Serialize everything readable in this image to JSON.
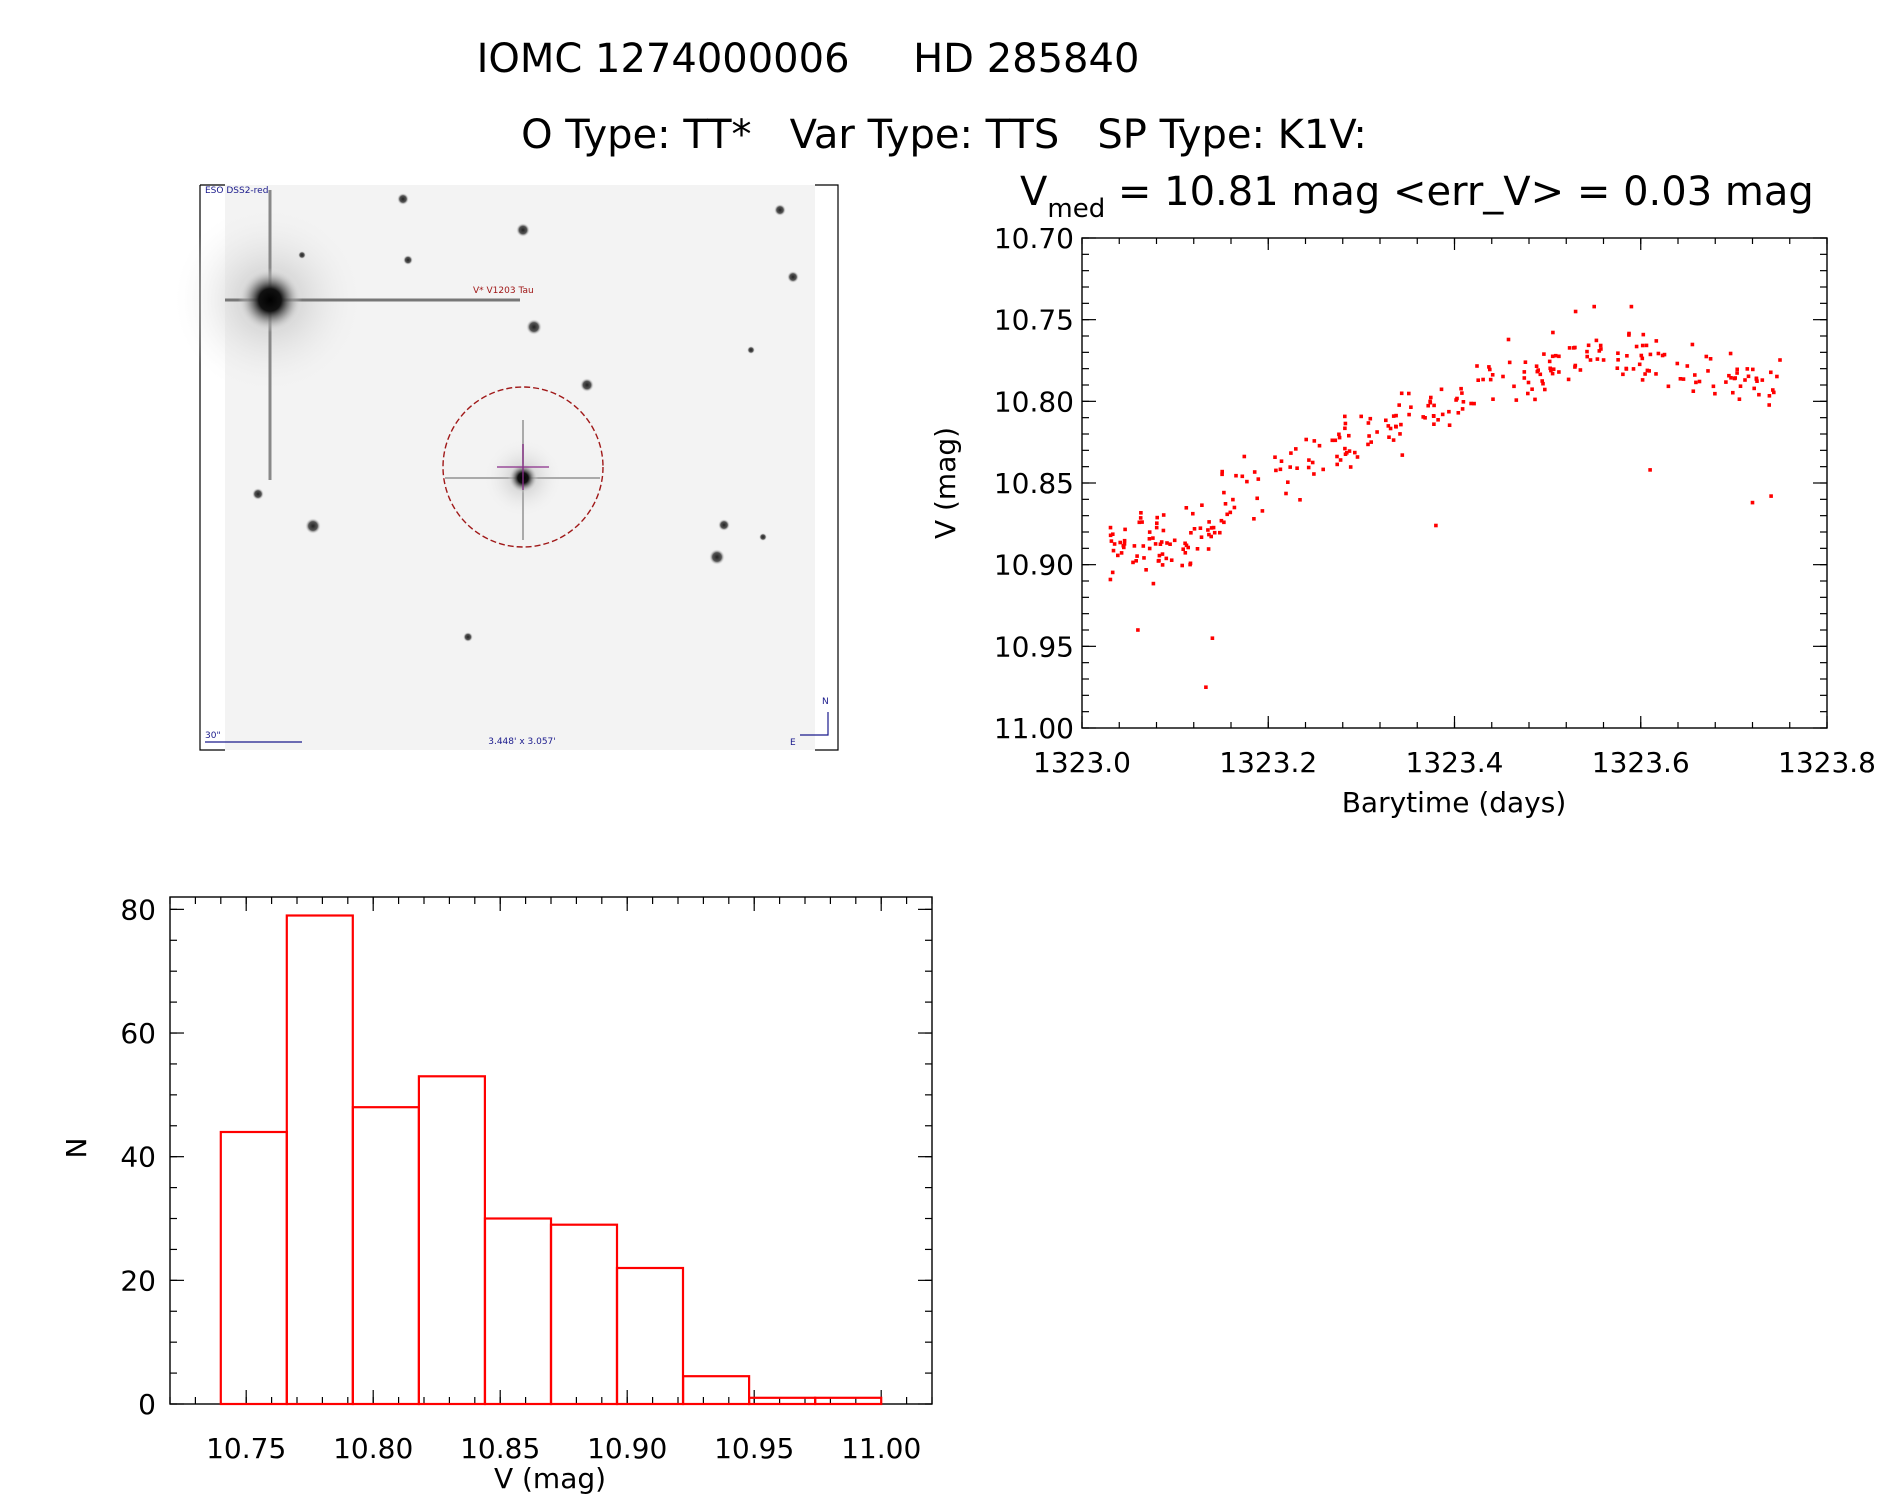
{
  "header": {
    "title": "IOMC 1274000006     HD 285840",
    "subtitle": "O Type: TT*   Var Type: TTS   SP Type: K1V:"
  },
  "sky_image": {
    "survey_label": "ESO DSS2-red",
    "target_label": "V* V1203 Tau",
    "scale_label": "30\"",
    "size_label": "3.448' x 3.057'",
    "north_label": "N",
    "east_label": "E",
    "circle_color": "#a01818",
    "crosshair_color": "#8a2e8a"
  },
  "colors": {
    "data": "#ff0000",
    "axes": "#000000",
    "label_blue": "#1a1a8c"
  },
  "chart_data": [
    {
      "type": "scatter",
      "title_main": "V",
      "title_sub": "med",
      "title_rest": " = 10.81 mag <err_V> = 0.03 mag",
      "xlabel": "Barytime (days)",
      "ylabel": "V (mag)",
      "xlim": [
        1323.0,
        1323.8
      ],
      "ylim": [
        11.0,
        10.7
      ],
      "xticks": [
        1323.0,
        1323.2,
        1323.4,
        1323.6,
        1323.8
      ],
      "xtick_labels": [
        "1323.0",
        "1323.2",
        "1323.4",
        "1323.6",
        "1323.8"
      ],
      "yticks": [
        10.7,
        10.75,
        10.8,
        10.85,
        10.9,
        10.95,
        11.0
      ],
      "ytick_labels": [
        "10.70",
        "10.75",
        "10.80",
        "10.85",
        "10.90",
        "10.95",
        "11.00"
      ],
      "n_points": 314,
      "trend": {
        "segments": [
          {
            "x0": 1323.03,
            "x1": 1323.15,
            "y0": 10.89,
            "y1": 10.88,
            "noise": 0.028
          },
          {
            "x0": 1323.15,
            "x1": 1323.35,
            "y0": 10.86,
            "y1": 10.81,
            "noise": 0.025
          },
          {
            "x0": 1323.35,
            "x1": 1323.55,
            "y0": 10.81,
            "y1": 10.77,
            "noise": 0.022
          },
          {
            "x0": 1323.55,
            "x1": 1323.75,
            "y0": 10.77,
            "y1": 10.79,
            "noise": 0.022
          }
        ]
      },
      "highlights": [
        {
          "x": 1323.133,
          "y": 10.975
        },
        {
          "x": 1323.14,
          "y": 10.945
        },
        {
          "x": 1323.06,
          "y": 10.94
        },
        {
          "x": 1323.53,
          "y": 10.745
        },
        {
          "x": 1323.55,
          "y": 10.742
        },
        {
          "x": 1323.59,
          "y": 10.742
        },
        {
          "x": 1323.72,
          "y": 10.862
        },
        {
          "x": 1323.74,
          "y": 10.858
        },
        {
          "x": 1323.61,
          "y": 10.842
        },
        {
          "x": 1323.38,
          "y": 10.876
        }
      ]
    },
    {
      "type": "bar",
      "style": "step-histogram",
      "xlabel": "V (mag)",
      "ylabel": "N",
      "xlim": [
        10.72,
        11.02
      ],
      "ylim": [
        0,
        82
      ],
      "bin_edges": [
        10.74,
        10.766,
        10.792,
        10.818,
        10.844,
        10.87,
        10.896,
        10.922,
        10.948,
        10.974,
        11.0
      ],
      "values": [
        44,
        79,
        48,
        53,
        30,
        29,
        22,
        4.5,
        1,
        1
      ],
      "xticks": [
        10.75,
        10.8,
        10.85,
        10.9,
        10.95,
        11.0
      ],
      "xtick_labels": [
        "10.75",
        "10.80",
        "10.85",
        "10.90",
        "10.95",
        "11.00"
      ],
      "yticks": [
        0,
        20,
        40,
        60,
        80
      ],
      "ytick_labels": [
        "0",
        "20",
        "40",
        "60",
        "80"
      ]
    }
  ]
}
